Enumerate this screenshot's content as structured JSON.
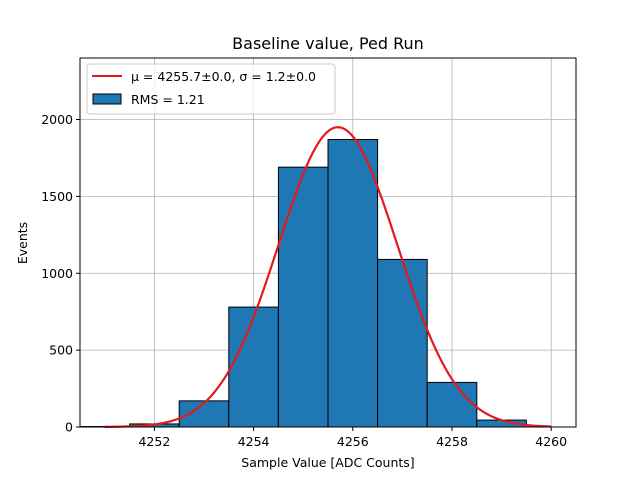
{
  "chart_data": {
    "type": "bar",
    "title": "Baseline value, Ped Run",
    "xlabel": "Sample Value [ADC Counts]",
    "ylabel": "Events",
    "xlim": [
      4250.5,
      4260.5
    ],
    "ylim": [
      0,
      2400
    ],
    "grid": true,
    "legend_position": "top-left",
    "x_ticks": [
      4252,
      4254,
      4256,
      4258,
      4260
    ],
    "x_tick_labels": [
      "4252",
      "4254",
      "4256",
      "4258",
      "4260"
    ],
    "y_ticks": [
      0,
      500,
      1000,
      1500,
      2000
    ],
    "y_tick_labels": [
      "0",
      "500",
      "1000",
      "1500",
      "2000"
    ],
    "bin_edges": [
      4250.5,
      4251.5,
      4252.5,
      4253.5,
      4254.5,
      4255.5,
      4256.5,
      4257.5,
      4258.5,
      4259.5
    ],
    "bin_counts": [
      3,
      20,
      170,
      780,
      1690,
      1870,
      1090,
      290,
      45
    ],
    "series": [
      {
        "name": "RMS = 1.21",
        "kind": "histogram",
        "color": "#1f77b4",
        "edgecolor": "#000000"
      },
      {
        "name": "μ = 4255.7±0.0, σ = 1.2±0.0",
        "kind": "gaussian-fit",
        "color": "#e31a1c",
        "mu": 4255.7,
        "sigma": 1.2,
        "amplitude": 1950,
        "x_range": [
          4251,
          4260
        ]
      }
    ]
  }
}
